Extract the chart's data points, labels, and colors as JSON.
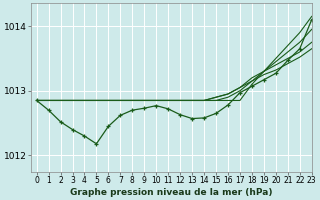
{
  "title": "Graphe pression niveau de la mer (hPa)",
  "bg_color": "#ceeaea",
  "grid_color": "#ffffff",
  "line_color": "#1a5c1a",
  "xlim": [
    -0.5,
    23
  ],
  "ylim": [
    1011.75,
    1014.35
  ],
  "yticks": [
    1012,
    1013,
    1014
  ],
  "xtick_labels": [
    "0",
    "1",
    "2",
    "3",
    "4",
    "5",
    "6",
    "7",
    "8",
    "9",
    "10",
    "11",
    "12",
    "13",
    "14",
    "15",
    "16",
    "17",
    "18",
    "19",
    "20",
    "21",
    "22",
    "23"
  ],
  "series": [
    {
      "y": [
        1012.85,
        1012.85,
        1012.85,
        1012.85,
        1012.85,
        1012.85,
        1012.85,
        1012.85,
        1012.85,
        1012.85,
        1012.85,
        1012.85,
        1012.85,
        1012.85,
        1012.85,
        1012.85,
        1012.85,
        1012.85,
        1013.1,
        1013.3,
        1013.5,
        1013.7,
        1013.9,
        1014.15
      ],
      "marker": false
    },
    {
      "y": [
        1012.85,
        1012.85,
        1012.85,
        1012.85,
        1012.85,
        1012.85,
        1012.85,
        1012.85,
        1012.85,
        1012.85,
        1012.85,
        1012.85,
        1012.85,
        1012.85,
        1012.85,
        1012.85,
        1012.9,
        1013.0,
        1013.15,
        1013.3,
        1013.45,
        1013.6,
        1013.75,
        1013.95
      ],
      "marker": false
    },
    {
      "y": [
        1012.85,
        1012.85,
        1012.85,
        1012.85,
        1012.85,
        1012.85,
        1012.85,
        1012.85,
        1012.85,
        1012.85,
        1012.85,
        1012.85,
        1012.85,
        1012.85,
        1012.85,
        1012.9,
        1012.95,
        1013.05,
        1013.2,
        1013.3,
        1013.4,
        1013.5,
        1013.6,
        1013.75
      ],
      "marker": false
    },
    {
      "y": [
        1012.85,
        1012.85,
        1012.85,
        1012.85,
        1012.85,
        1012.85,
        1012.85,
        1012.85,
        1012.85,
        1012.85,
        1012.85,
        1012.85,
        1012.85,
        1012.85,
        1012.85,
        1012.9,
        1012.95,
        1013.05,
        1013.15,
        1013.25,
        1013.32,
        1013.42,
        1013.52,
        1013.65
      ],
      "marker": false
    },
    {
      "y": [
        1012.85,
        1012.7,
        1012.52,
        1012.4,
        1012.3,
        1012.18,
        1012.45,
        1012.62,
        1012.7,
        1012.73,
        1012.77,
        1012.72,
        1012.63,
        1012.57,
        1012.58,
        1012.65,
        1012.78,
        1012.97,
        1013.07,
        1013.17,
        1013.27,
        1013.47,
        1013.65,
        1014.1
      ],
      "marker": true
    }
  ],
  "ylabel_fontsize": 6.5,
  "xlabel_fontsize": 6.5,
  "tick_fontsize": 5.5
}
